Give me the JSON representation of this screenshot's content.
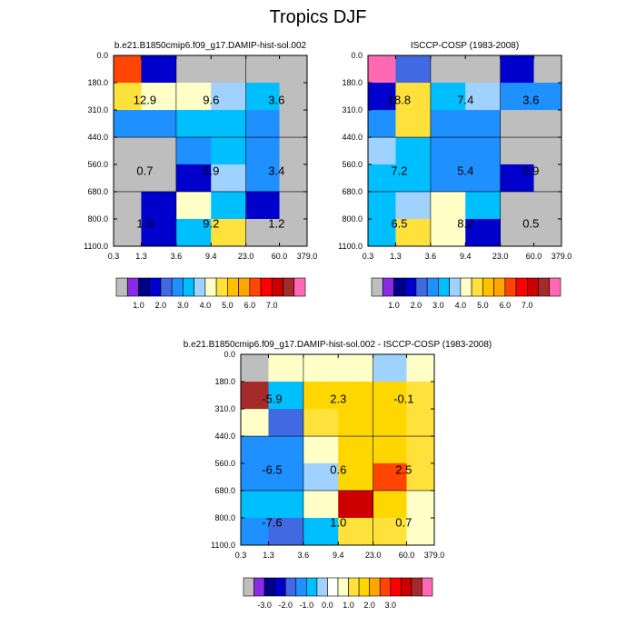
{
  "figure": {
    "title": "Tropics DJF"
  },
  "colors": {
    "missing": "#bebebe",
    "abs_palette": [
      "#bebebe",
      "#8a2be2",
      "#00008b",
      "#0000cd",
      "#4169e1",
      "#1e90ff",
      "#00bfff",
      "#a0d2ff",
      "#ffffc8",
      "#ffe13c",
      "#ffc000",
      "#ffa500",
      "#ff4500",
      "#ff0000",
      "#cd0000",
      "#a52a2a",
      "#ff69b4"
    ],
    "diff_palette": [
      "#bebebe",
      "#8a2be2",
      "#00008b",
      "#0000cd",
      "#4169e1",
      "#1e90ff",
      "#00bfff",
      "#a0d2ff",
      "#ffffff",
      "#ffffc8",
      "#ffe13c",
      "#ffd700",
      "#ffa500",
      "#ff4500",
      "#ff0000",
      "#cd0000",
      "#a52a2a",
      "#ff69b4"
    ]
  },
  "chart_data": [
    {
      "type": "heatmap",
      "title": "b.e21.B1850cmip6.f09_g17.DAMIP-hist-sol.002",
      "x_ticks": [
        "0.3",
        "1.3",
        "3.6",
        "9.4",
        "23.0",
        "60.0",
        "379.0"
      ],
      "y_ticks": [
        "0.0",
        "180.0",
        "310.0",
        "440.0",
        "560.0",
        "680.0",
        "800.0",
        "1100.0"
      ],
      "xlabel": "",
      "ylabel": "",
      "grid": [
        [
          5.5,
          1.2,
          null,
          null,
          null,
          null
        ],
        [
          4.3,
          3.6,
          3.6,
          3.2,
          2.5,
          null
        ],
        [
          2.3,
          2.3,
          2.8,
          2.8,
          2.3,
          null
        ],
        [
          null,
          null,
          2.0,
          2.5,
          2.3,
          null
        ],
        [
          null,
          null,
          1.3,
          3.4,
          2.3,
          null
        ],
        [
          null,
          1.2,
          3.6,
          2.8,
          1.3,
          null
        ],
        [
          null,
          1.3,
          2.9,
          4.1,
          null,
          null
        ]
      ],
      "block_values": [
        [
          "12.9",
          "9.6",
          "3.6"
        ],
        [
          "0.7",
          "5.9",
          "3.4"
        ],
        [
          "1.9",
          "9.2",
          "1.2"
        ]
      ],
      "colorbar": {
        "labels": [
          "1.0",
          "2.0",
          "3.0",
          "4.0",
          "5.0",
          "6.0",
          "7.0"
        ]
      }
    },
    {
      "type": "heatmap",
      "title": "ISCCP-COSP (1983-2008)",
      "x_ticks": [
        "0.3",
        "1.3",
        "3.6",
        "9.4",
        "23.0",
        "60.0",
        "379.0"
      ],
      "y_ticks": [
        "0.0",
        "180.0",
        "310.0",
        "440.0",
        "560.0",
        "680.0",
        "800.0",
        "1100.0"
      ],
      "xlabel": "",
      "ylabel": "",
      "grid": [
        [
          7.5,
          1.8,
          null,
          null,
          1.2,
          null
        ],
        [
          1.2,
          4.2,
          2.5,
          3.2,
          2.0,
          2.0
        ],
        [
          2.0,
          4.3,
          2.2,
          2.2,
          null,
          null
        ],
        [
          3.2,
          2.5,
          2.2,
          2.2,
          null,
          null
        ],
        [
          2.5,
          2.5,
          2.2,
          2.2,
          1.2,
          null
        ],
        [
          2.5,
          3.2,
          3.6,
          2.5,
          null,
          null
        ],
        [
          2.5,
          4.3,
          3.7,
          1.2,
          null,
          null
        ]
      ],
      "block_values": [
        [
          "18.8",
          "7.4",
          "3.6"
        ],
        [
          "7.2",
          "5.4",
          "0.9"
        ],
        [
          "6.5",
          "8.2",
          "0.5"
        ]
      ],
      "colorbar": {
        "labels": [
          "1.0",
          "2.0",
          "3.0",
          "4.0",
          "5.0",
          "6.0",
          "7.0"
        ]
      }
    },
    {
      "type": "heatmap",
      "title": "b.e21.B1850cmip6.f09_g17.DAMIP-hist-sol.002 - ISCCP-COSP (1983-2008)",
      "x_ticks": [
        "0.3",
        "1.3",
        "3.6",
        "9.4",
        "23.0",
        "60.0",
        "379.0"
      ],
      "y_ticks": [
        "0.0",
        "180.0",
        "310.0",
        "440.0",
        "560.0",
        "680.0",
        "800.0",
        "1100.0"
      ],
      "xlabel": "",
      "ylabel": "",
      "grid": [
        [
          null,
          -0.5,
          -0.5,
          -0.5,
          -1.2,
          -0.5
        ],
        [
          3.2,
          -1.8,
          0.8,
          0.8,
          0.5,
          0.2
        ],
        [
          -0.5,
          -2.8,
          0.2,
          0.8,
          0.8,
          0.2
        ],
        [
          -2.2,
          -2.2,
          -0.5,
          0.8,
          0.8,
          0.2
        ],
        [
          -2.2,
          -2.2,
          -1.2,
          0.8,
          1.8,
          0.2
        ],
        [
          -1.8,
          -1.8,
          -0.5,
          2.8,
          0.8,
          -0.5
        ],
        [
          -2.2,
          -2.8,
          -1.8,
          0.2,
          0.2,
          -0.5
        ]
      ],
      "block_values": [
        [
          "-5.9",
          "2.3",
          "-0.1"
        ],
        [
          "-6.5",
          "0.6",
          "2.5"
        ],
        [
          "-7.6",
          "1.0",
          "0.7"
        ]
      ],
      "colorbar": {
        "labels": [
          "-3.0",
          "-2.0",
          "-1.0",
          "0.0",
          "1.0",
          "2.0",
          "3.0"
        ]
      }
    }
  ]
}
